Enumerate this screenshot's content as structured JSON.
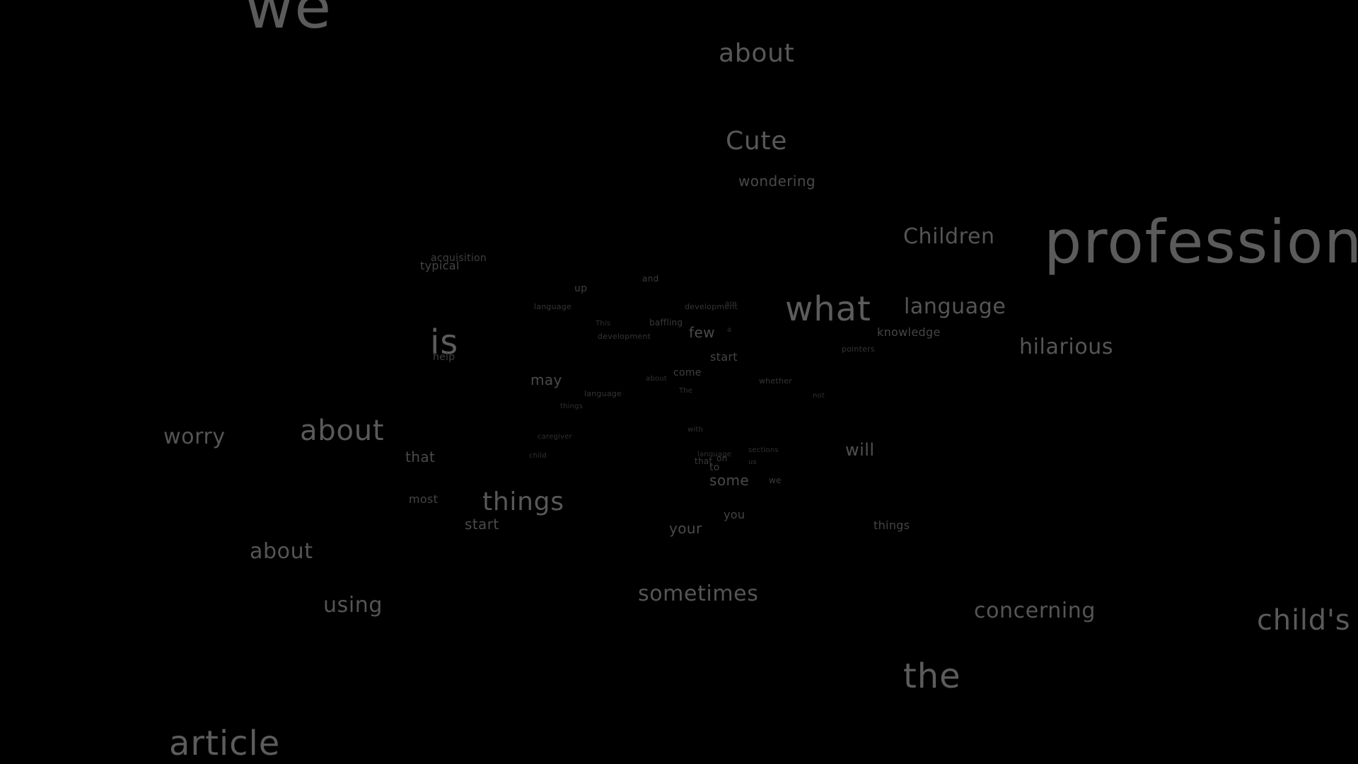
{
  "screensaver": {
    "words": [
      "we",
      "about",
      "Cute",
      "wondering",
      "Children",
      "profession",
      "acquisition",
      "typical",
      "and",
      "up",
      "language",
      "development",
      "are",
      "This",
      "baffling",
      "few",
      "a",
      "what",
      "language",
      "knowledge",
      "development",
      "is",
      "help",
      "pointers",
      "hilarious",
      "start",
      "may",
      "about",
      "come",
      "whether",
      "language",
      "The",
      "not",
      "things",
      "worry",
      "about",
      "caregiver",
      "with",
      "will",
      "that",
      "child",
      "language",
      "that",
      "on",
      "sections",
      "us",
      "to",
      "some",
      "we",
      "most",
      "things",
      "start",
      "you",
      "your",
      "things",
      "about",
      "sometimes",
      "using",
      "concerning",
      "child's",
      "the",
      "article"
    ]
  }
}
